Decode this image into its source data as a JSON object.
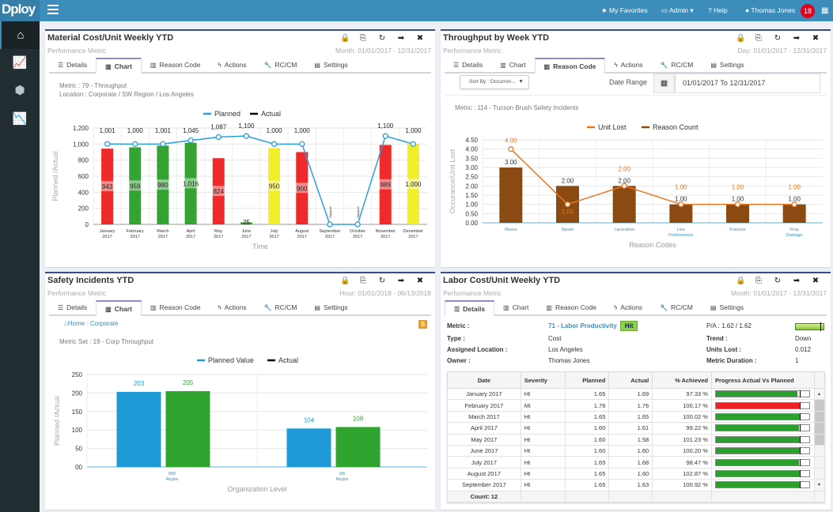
{
  "header": {
    "logo": "Dploy",
    "logo_sub": "solutions",
    "nav": {
      "favorites": "My Favorites",
      "admin": "Admin",
      "help": "Help",
      "user": "Thomas Jones",
      "notifications": "18"
    }
  },
  "sidebar": {
    "items": [
      {
        "icon": "home-icon"
      },
      {
        "icon": "line-chart-icon"
      },
      {
        "icon": "cubes-icon"
      },
      {
        "icon": "area-chart-icon"
      }
    ]
  },
  "tabs": [
    "Details",
    "Chart",
    "Reason Code",
    "Actions",
    "RC/CM",
    "Settings"
  ],
  "panels": {
    "material": {
      "title": "Material Cost/Unit Weekly YTD",
      "subtitle": "Performance Metric",
      "range": "Month: 01/01/2017 - 12/31/2017",
      "active_tab": 1,
      "metric": "Metric  : 79 - Throughput",
      "location": "Location : Corporate /  SW Region /  Los Angeles"
    },
    "throughput": {
      "title": "Throughput by Week YTD",
      "subtitle": "Performance Metric",
      "range": "Day: 01/01/2017 - 12/31/2017",
      "active_tab": 2,
      "sort_by": "Sort By : Occurren...",
      "date_range_label": "Date Range",
      "date_range_value": "01/01/2017 To 12/31/2017",
      "metric": "Metric  : 114 - Tucson Brush Safety Incidents"
    },
    "safety": {
      "title": "Safety Incidents YTD",
      "subtitle": "Performance Metric",
      "range": "Hour: 01/01/2018 - 06/13/2018",
      "active_tab": 1,
      "breadcrumb": [
        "Home",
        "Corporate"
      ],
      "badge": "S",
      "metric": "Metric Set : 19 - Corp Throughput"
    },
    "labor": {
      "title": "Labor Cost/Unit Weekly YTD",
      "subtitle": "Performance Metric",
      "range": "Month: 01/01/2017 - 12/31/2017",
      "active_tab": 0,
      "details": {
        "metric_label": "Metric :",
        "metric_value": "71 - Labor Productivity",
        "status": "Hit",
        "type_label": "Type :",
        "type_value": "Cost",
        "location_label": "Assigned Location :",
        "location_value": "Los Angeles",
        "owner_label": "Owner :",
        "owner_value": "Thomas Jones",
        "pa_label": "P/A : 1.62 / 1.62",
        "pa_fill": 0.9,
        "trend_label": "Trend :",
        "trend_value": "Down",
        "units_lost_label": "Units Lost :",
        "units_lost_value": "0.012",
        "duration_label": "Metric Duration :",
        "duration_value": "1"
      },
      "table": {
        "columns": [
          "Date",
          "Severity",
          "Planned",
          "Actual",
          "% Achieved",
          "Progress Actual Vs Planned"
        ],
        "rows": [
          {
            "date": "January 2017",
            "severity": "Ht",
            "planned": "1.65",
            "actual": "1.69",
            "achieved": "97.33 %",
            "pct": 97.33,
            "color": "#2ca02c"
          },
          {
            "date": "February 2017",
            "severity": "Mi",
            "planned": "1.76",
            "actual": "1.76",
            "achieved": "100.17 %",
            "pct": 100.17,
            "color": "#ee2222"
          },
          {
            "date": "March 2017",
            "severity": "Ht",
            "planned": "1.65",
            "actual": "1.65",
            "achieved": "100.02 %",
            "pct": 100.02,
            "color": "#2ca02c"
          },
          {
            "date": "April 2017",
            "severity": "Ht",
            "planned": "1.60",
            "actual": "1.61",
            "achieved": "99.22 %",
            "pct": 99.22,
            "color": "#2ca02c"
          },
          {
            "date": "May 2017",
            "severity": "Ht",
            "planned": "1.60",
            "actual": "1.58",
            "achieved": "101.23 %",
            "pct": 101.23,
            "color": "#2ca02c"
          },
          {
            "date": "June 2017",
            "severity": "Ht",
            "planned": "1.60",
            "actual": "1.60",
            "achieved": "100.20 %",
            "pct": 100.2,
            "color": "#2ca02c"
          },
          {
            "date": "July 2017",
            "severity": "Ht",
            "planned": "1.65",
            "actual": "1.68",
            "achieved": "98.47 %",
            "pct": 98.47,
            "color": "#2ca02c"
          },
          {
            "date": "August 2017",
            "severity": "Ht",
            "planned": "1.65",
            "actual": "1.60",
            "achieved": "102.87 %",
            "pct": 102.87,
            "color": "#2ca02c"
          },
          {
            "date": "September 2017",
            "severity": "Ht",
            "planned": "1.65",
            "actual": "1.63",
            "achieved": "100.92 %",
            "pct": 100.92,
            "color": "#2ca02c"
          }
        ],
        "footer": "Count: 12"
      }
    }
  },
  "chart_data": [
    {
      "type": "bar",
      "categories": [
        "January 2017",
        "February 2017",
        "March 2017",
        "April 2017",
        "May 2017",
        "June 2017",
        "July 2017",
        "August 2017",
        "September 2017",
        "October 2017",
        "November 2017",
        "December 2017"
      ],
      "series": [
        {
          "name": "Planned",
          "type": "line",
          "color": "#2b9fd8",
          "values": [
            1001,
            1000,
            1001,
            1045,
            1087,
            1100,
            1000,
            1000,
            0,
            0,
            1100,
            1000
          ],
          "labels": [
            "1,001",
            "1,000",
            "1,001",
            "1,045",
            "1,087",
            "1,100",
            "1,000",
            "1,000",
            "Skipped",
            "Skipped",
            "1,100",
            "1,000"
          ]
        },
        {
          "name": "Actual",
          "type": "bar",
          "color": "#000000",
          "values": [
            943,
            959,
            980,
            1016,
            824,
            25,
            950,
            900,
            null,
            null,
            989,
            1000
          ],
          "labels": [
            "943",
            "959",
            "980",
            "1,016",
            "824",
            "25",
            "950",
            "900",
            "",
            "",
            "989",
            "1,000"
          ],
          "bar_colors": [
            "#ee2a2a",
            "#34a334",
            "#34a334",
            "#34a334",
            "#ee2a2a",
            "#34a334",
            "#f2ee2a",
            "#ee2a2a",
            "",
            "",
            "#ee2a2a",
            "#f2ee2a"
          ]
        }
      ],
      "xlabel": "Time",
      "ylabel": "Planned /Actual",
      "ylim": [
        0,
        1200
      ],
      "yticks": [
        "0",
        "200",
        "400",
        "600",
        "800",
        "1,000",
        "1,200"
      ],
      "grid": true,
      "legend": "top-center"
    },
    {
      "type": "bar",
      "categories": [
        "Illness",
        "Sprain",
        "Laceration",
        "Line Performance",
        "Fracture",
        "Prop Damage"
      ],
      "series": [
        {
          "name": "Unit Lost",
          "type": "line",
          "color": "#e87722",
          "values": [
            4,
            1,
            2,
            1,
            1,
            1
          ],
          "labels": [
            "4.00",
            "1.00",
            "2.00",
            "1.00",
            "1.00",
            "1.00"
          ]
        },
        {
          "name": "Reason Count",
          "type": "bar",
          "color": "#8b4a12",
          "values": [
            3,
            2,
            2,
            1,
            1,
            1
          ],
          "labels": [
            "3.00",
            "2.00",
            "2.00",
            "1.00",
            "1.00",
            "1.00"
          ]
        }
      ],
      "xlabel": "Reason Codes",
      "ylabel": "Occurance/Unit Lost",
      "ylim": [
        0,
        4.5
      ],
      "yticks": [
        "0.00",
        "0.50",
        "1.00",
        "1.50",
        "2.00",
        "2.50",
        "3.00",
        "3.50",
        "4.00",
        "4.50"
      ],
      "grid": true,
      "legend": "top-center"
    },
    {
      "type": "bar",
      "categories": [
        "MW Region",
        "SW Region"
      ],
      "series": [
        {
          "name": "Planned Value",
          "color": "#1e9bd7",
          "values": [
            203,
            104
          ]
        },
        {
          "name": "Actual",
          "color": "#2fa52f",
          "values": [
            205,
            108
          ]
        }
      ],
      "xlabel": "Organization Level",
      "ylabel": "Planned /Actual",
      "ylim": [
        0,
        250
      ],
      "yticks": [
        "00",
        "50",
        "100",
        "150",
        "200",
        "250"
      ],
      "grid": true,
      "legend": "top-center"
    }
  ]
}
